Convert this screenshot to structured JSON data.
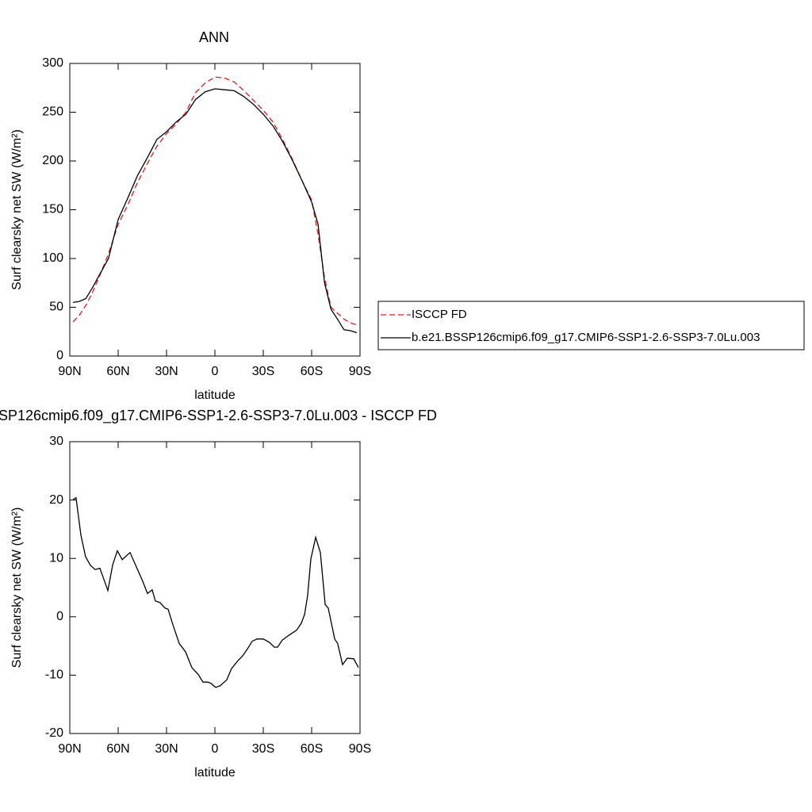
{
  "chart_data": [
    {
      "type": "line",
      "title": "ANN",
      "xlabel": "latitude",
      "ylabel": "Surf clearsky net SW (W/m²)",
      "x": [
        88,
        84,
        80,
        76,
        72,
        66,
        60,
        54,
        48,
        42,
        36,
        30,
        24,
        18,
        12,
        6,
        0,
        -6,
        -12,
        -18,
        -24,
        -30,
        -36,
        -42,
        -48,
        -54,
        -60,
        -64,
        -68,
        -72,
        -76,
        -80,
        -84,
        -88
      ],
      "series": [
        {
          "name": "ISCCP FD",
          "color": "#e41a1c",
          "style": "dashed",
          "values": [
            35,
            42,
            52,
            65,
            80,
            105,
            135,
            155,
            178,
            197,
            215,
            228,
            238,
            250,
            270,
            280,
            286,
            285,
            281,
            272,
            262,
            252,
            240,
            222,
            202,
            180,
            160,
            125,
            80,
            50,
            44,
            38,
            34,
            32
          ]
        },
        {
          "name": "b.e21.BSSP126cmip6.f09_g17.CMIP6-SSP1-2.6-SSP3-7.0Lu.003",
          "color": "#000000",
          "style": "solid",
          "values": [
            55,
            56,
            59,
            70,
            82,
            100,
            140,
            162,
            185,
            203,
            222,
            230,
            240,
            248,
            263,
            271,
            274,
            273,
            272,
            266,
            258,
            248,
            236,
            220,
            201,
            180,
            158,
            135,
            75,
            48,
            38,
            27,
            26,
            24
          ]
        }
      ],
      "xlim": [
        90,
        -90
      ],
      "xticks": [
        {
          "value": 90,
          "label": "90N"
        },
        {
          "value": 60,
          "label": "60N"
        },
        {
          "value": 30,
          "label": "30N"
        },
        0,
        {
          "value": -30,
          "label": "30S"
        },
        {
          "value": -60,
          "label": "60S"
        },
        {
          "value": -90,
          "label": "90S"
        }
      ],
      "ylim": [
        0,
        300
      ],
      "yticks": [
        0,
        50,
        100,
        150,
        200,
        250,
        300
      ]
    },
    {
      "type": "line",
      "title": "SP126cmip6.f09_g17.CMIP6-SSP1-2.6-SSP3-7.0Lu.003 - ISCCP FD",
      "xlabel": "latitude",
      "ylabel": "Surf clearsky net SW (W/m²)",
      "x": [
        88.0,
        86.1,
        83.1,
        80.2,
        77.2,
        74.3,
        71.3,
        66.4,
        63.4,
        60.5,
        57.5,
        52.6,
        44.8,
        41.8,
        38.9,
        36.9,
        33.9,
        31.0,
        29.0,
        26.1,
        22.1,
        18.2,
        14.3,
        10.3,
        7.4,
        4.4,
        2.5,
        -0.5,
        -3.4,
        -7.4,
        -10.3,
        -14.3,
        -17.2,
        -20.2,
        -23.1,
        -26.1,
        -30.0,
        -33.9,
        -36.9,
        -38.9,
        -41.8,
        -45.7,
        -50.7,
        -53.6,
        -55.6,
        -57.5,
        -59.5,
        -62.5,
        -65.4,
        -68.4,
        -70.3,
        -74.3,
        -76.2,
        -79.2,
        -82.1,
        -86.1,
        -89.0
      ],
      "series": [
        {
          "color": "#000000",
          "style": "solid",
          "values": [
            20.1,
            20.4,
            14.0,
            10.3,
            8.8,
            8.1,
            8.3,
            4.5,
            8.9,
            11.3,
            9.8,
            11.0,
            6.1,
            4.0,
            4.6,
            2.7,
            2.4,
            1.5,
            1.3,
            -1.3,
            -4.6,
            -6.0,
            -8.7,
            -9.9,
            -11.2,
            -11.2,
            -11.4,
            -12.1,
            -11.8,
            -10.8,
            -8.9,
            -7.5,
            -6.7,
            -5.5,
            -4.2,
            -3.8,
            -3.8,
            -4.4,
            -5.2,
            -5.2,
            -4.0,
            -3.2,
            -2.3,
            -1.1,
            0.4,
            3.6,
            9.9,
            13.6,
            11.0,
            2.1,
            1.5,
            -3.8,
            -4.6,
            -8.2,
            -7.1,
            -7.2,
            -8.7
          ]
        }
      ],
      "xlim": [
        90,
        -90
      ],
      "xticks": [
        {
          "value": 90,
          "label": "90N"
        },
        {
          "value": 60,
          "label": "60N"
        },
        {
          "value": 30,
          "label": "30N"
        },
        0,
        {
          "value": -30,
          "label": "30S"
        },
        {
          "value": -60,
          "label": "60S"
        },
        {
          "value": -90,
          "label": "90S"
        }
      ],
      "ylim": [
        -20,
        30
      ],
      "yticks": [
        -20,
        -10,
        0,
        10,
        20,
        30
      ]
    }
  ]
}
